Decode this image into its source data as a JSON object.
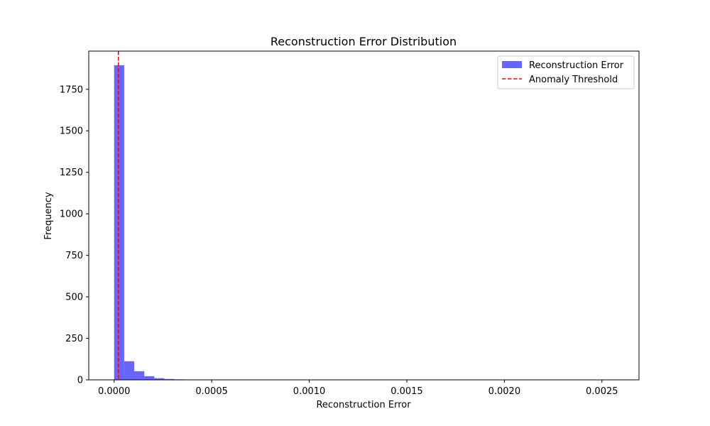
{
  "chart_data": {
    "type": "bar",
    "title": "Reconstruction Error Distribution",
    "xlabel": "Reconstruction Error",
    "ylabel": "Frequency",
    "xlim": [
      -0.00013,
      0.00269
    ],
    "ylim": [
      0,
      1980
    ],
    "xticks": [
      {
        "value": 0.0,
        "label": "0.0000"
      },
      {
        "value": 0.0005,
        "label": "0.0005"
      },
      {
        "value": 0.001,
        "label": "0.0010"
      },
      {
        "value": 0.0015,
        "label": "0.0015"
      },
      {
        "value": 0.002,
        "label": "0.0020"
      },
      {
        "value": 0.0025,
        "label": "0.0025"
      }
    ],
    "yticks": [
      {
        "value": 0,
        "label": "0"
      },
      {
        "value": 250,
        "label": "250"
      },
      {
        "value": 500,
        "label": "500"
      },
      {
        "value": 750,
        "label": "750"
      },
      {
        "value": 1000,
        "label": "1000"
      },
      {
        "value": 1250,
        "label": "1250"
      },
      {
        "value": 1500,
        "label": "1500"
      },
      {
        "value": 1750,
        "label": "1750"
      }
    ],
    "bins": {
      "start": 0.0,
      "width": 5.15e-05,
      "counts": [
        1895,
        112,
        52,
        22,
        10,
        5,
        3,
        2,
        1,
        1,
        1,
        0,
        0,
        0,
        0,
        0,
        0,
        0,
        0,
        0,
        0,
        0,
        0,
        0,
        0,
        0,
        0,
        0,
        0,
        0,
        0,
        0,
        0,
        0,
        0,
        0,
        0,
        0,
        0,
        0,
        0,
        0,
        0,
        0,
        0,
        0,
        0,
        0,
        0,
        1
      ]
    },
    "threshold": 2.2e-05,
    "grid": false,
    "legend_position": "upper right",
    "legend": [
      {
        "label": "Reconstruction Error",
        "kind": "patch",
        "color": "#6666ff"
      },
      {
        "label": "Anomaly Threshold",
        "kind": "dashed-line",
        "color": "#ff0000"
      }
    ],
    "colors": {
      "bar": "#6666ff",
      "threshold": "#ff0000"
    }
  }
}
